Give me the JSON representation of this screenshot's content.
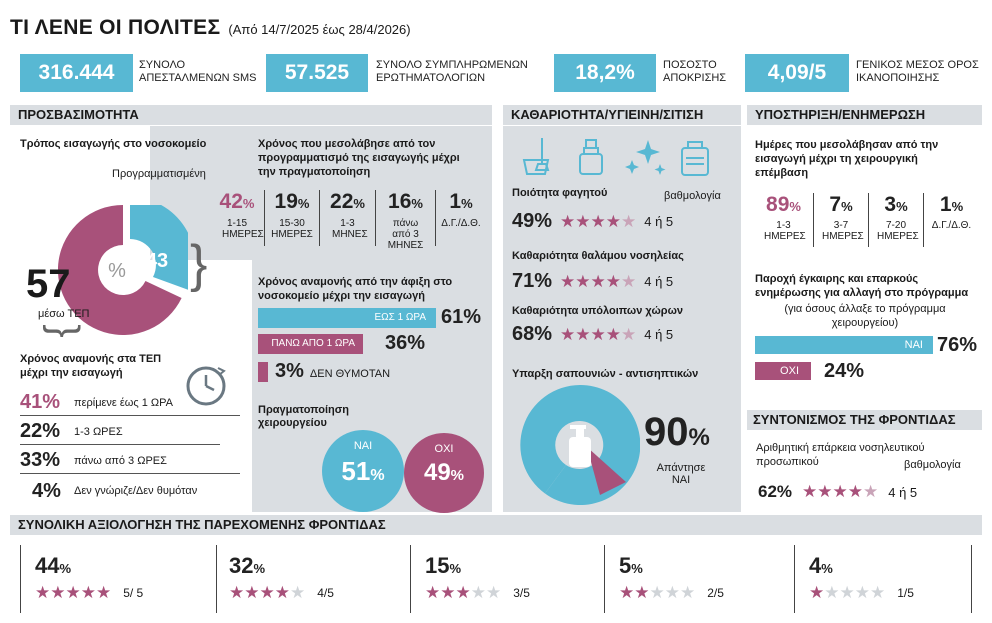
{
  "title": {
    "main": "ΤΙ ΛΕΝΕ ΟΙ ΠΟΛΙΤΕΣ",
    "period": "(Από 14/7/2025 έως 28/4/2026)"
  },
  "kpis": [
    {
      "value": "316.444",
      "label": "ΣΥΝΟΛΟ ΑΠΕΣΤΑΛΜΕΝΩΝ SMS"
    },
    {
      "value": "57.525",
      "label": "ΣΥΝΟΛΟ ΣΥΜΠΛΗΡΩΜΕΝΩΝ ΕΡΩΤΗΜΑΤΟΛΟΓΙΩΝ"
    },
    {
      "value": "18,2%",
      "label": "ΠΟΣΟΣΤΟ ΑΠΟΚΡΙΣΗΣ"
    },
    {
      "value": "4,09/5",
      "label": "ΓΕΝΙΚΟΣ ΜΕΣΟΣ ΟΡΟΣ ΙΚΑΝΟΠΟΙΗΣΗΣ"
    }
  ],
  "sections": {
    "access": "ΠΡΟΣΒΑΣΙΜΟΤΗΤΑ",
    "clean": "ΚΑΘΑΡΙΟΤΗΤΑ/ΥΓΙΕΙΝΗ/ΣΙΤΙΣΗ",
    "support": "ΥΠΟΣΤΗΡΙΞΗ/ΕΝΗΜΕΡΩΣΗ",
    "coord": "ΣΥΝΤΟΝΙΣΜΟΣ ΤΗΣ ΦΡΟΝΤΙΔΑΣ",
    "overall": "ΣΥΝΟΛΙΚΗ ΑΞΙΟΛΟΓΗΣΗ ΤΗΣ ΠΑΡΕΧΟΜΕΝΗΣ ΦΡΟΝΤΙΔΑΣ"
  },
  "admission": {
    "title": "Τρόπος εισαγωγής στο νοσοκομείο",
    "planned_label": "Προγραμματισμένη",
    "planned": "43",
    "tep": "57",
    "tep_label": "μέσω ΤΕΠ",
    "pct_sign": "%"
  },
  "tep_wait": {
    "title": "Χρόνος αναμονής στα ΤΕΠ μέχρι την εισαγωγή",
    "rows": [
      {
        "pct": "41%",
        "label": "περίμενε έως 1 ΩΡΑ"
      },
      {
        "pct": "22%",
        "label": "1-3 ΩΡΕΣ"
      },
      {
        "pct": "33%",
        "label": "πάνω από 3 ΩΡΕΣ"
      },
      {
        "pct": "4%",
        "label": "Δεν γνώριζε/Δεν θυμόταν"
      }
    ]
  },
  "scheduling": {
    "title": "Χρόνος που μεσολάβησε από τον προγραμματισμό της εισαγωγής μέχρι την πραγματοποίηση",
    "items": [
      {
        "num": "42",
        "label": "1-15 ΗΜΕΡΕΣ"
      },
      {
        "num": "19",
        "label": "15-30 ΗΜΕΡΕΣ"
      },
      {
        "num": "22",
        "label": "1-3 ΜΗΝΕΣ"
      },
      {
        "num": "16",
        "label": "πάνω από 3 ΜΗΝΕΣ"
      },
      {
        "num": "1",
        "label": "Δ.Γ./Δ.Θ."
      }
    ]
  },
  "arrival_wait": {
    "title": "Χρόνος αναμονής από την άφιξη στο νοσοκομείο μέχρι την εισαγωγή",
    "rows": [
      {
        "label": "ΕΩΣ 1 ΩΡΑ",
        "pct": "61%",
        "value": 61
      },
      {
        "label": "ΠΑΝΩ ΑΠΟ 1 ΩΡΑ",
        "pct": "36%",
        "value": 36
      },
      {
        "label": "ΔΕΝ ΘΥΜΟΤΑΝ",
        "pct": "3%",
        "value": 3
      }
    ]
  },
  "surgery": {
    "title": "Πραγματοποίηση χειρουργείου",
    "yes": "ΝΑΙ",
    "yes_num": "51",
    "no": "ΟΧΙ",
    "no_num": "49"
  },
  "clean": {
    "rating_label": "βαθμολογία",
    "items": [
      {
        "title": "Ποιότητα φαγητού",
        "pct": "49%",
        "rating": "4 ή 5"
      },
      {
        "title": "Καθαριότητα θαλάμου νοσηλείας",
        "pct": "71%",
        "rating": "4 ή 5"
      },
      {
        "title": "Καθαριότητα υπόλοιπων χώρων",
        "pct": "68%",
        "rating": "4 ή 5"
      }
    ],
    "soap_title": "Υπαρξη σαπουνιών - αντισηπτικών",
    "soap_pct": "90",
    "soap_label": "Απάντησε ΝΑΙ"
  },
  "surgery_days": {
    "title": "Ημέρες που μεσολάβησαν από την εισαγωγή μέχρι τη χειρουργική επέμβαση",
    "items": [
      {
        "num": "89",
        "label": "1-3 ΗΜΕΡΕΣ"
      },
      {
        "num": "7",
        "label": "3-7 ΗΜΕΡΕΣ"
      },
      {
        "num": "3",
        "label": "7-20 ΗΜΕΡΕΣ"
      },
      {
        "num": "1",
        "label": "Δ.Γ./Δ.Θ."
      }
    ]
  },
  "info": {
    "title": "Παροχή έγκαιρης και επαρκούς ενημέρωσης για αλλαγή στο πρόγραμμα",
    "subtitle": "(για όσους άλλαξε το πρόγραμμα χειρουργείου)",
    "rows": [
      {
        "label": "ΝΑΙ",
        "pct": "76%",
        "value": 76
      },
      {
        "label": "ΟΧΙ",
        "pct": "24%",
        "value": 24
      }
    ]
  },
  "coord": {
    "title": "Αριθμητική επάρκεια νοσηλευτικού προσωπικού",
    "rating_label": "βαθμολογία",
    "pct": "62%",
    "rating": "4 ή 5"
  },
  "overall": [
    {
      "num": "44",
      "stars": 5,
      "label": "5/ 5"
    },
    {
      "num": "32",
      "stars": 4,
      "label": "4/5"
    },
    {
      "num": "15",
      "stars": 3,
      "label": "3/5"
    },
    {
      "num": "5",
      "stars": 2,
      "label": "2/5"
    },
    {
      "num": "4",
      "stars": 1,
      "label": "1/5"
    }
  ],
  "colors": {
    "blue": "#58b8d3",
    "magenta": "#a8517a",
    "gray": "#dadee2",
    "pink": "#c9a4b8"
  }
}
